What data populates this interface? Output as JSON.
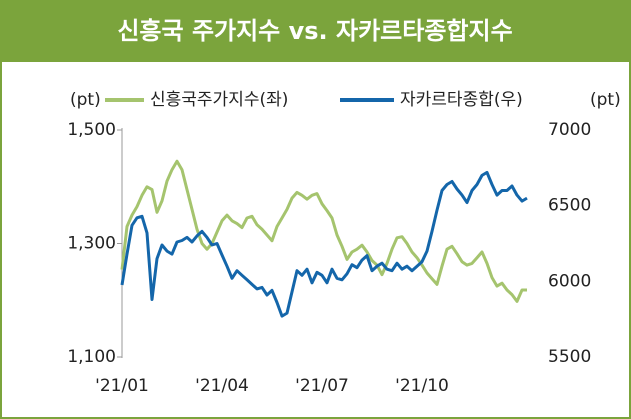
{
  "chart_data": {
    "type": "line",
    "title": "신흥국 주가지수 vs. 자카르타종합지수",
    "y_label": "(pt)",
    "y2_label": "(pt)",
    "categories": [
      "'21/01",
      null,
      null,
      null,
      null,
      null,
      null,
      null,
      null,
      null,
      null,
      null,
      null,
      null,
      null,
      null,
      null,
      null,
      null,
      null,
      "'21/04",
      null,
      null,
      null,
      null,
      null,
      null,
      null,
      null,
      null,
      null,
      null,
      null,
      null,
      null,
      null,
      null,
      null,
      null,
      null,
      "'21/07",
      null,
      null,
      null,
      null,
      null,
      null,
      null,
      null,
      null,
      null,
      null,
      null,
      null,
      null,
      null,
      null,
      null,
      null,
      null,
      "'21/10",
      null,
      null,
      null,
      null,
      null,
      null,
      null,
      null,
      null,
      null,
      null,
      null,
      null,
      null,
      null,
      null,
      null,
      null,
      null,
      null,
      null
    ],
    "series": [
      {
        "name": "신흥국주가지수(좌)",
        "color": "#a5c46e",
        "axis": "y",
        "values": [
          1254,
          1330,
          1350,
          1365,
          1385,
          1400,
          1395,
          1355,
          1375,
          1410,
          1430,
          1445,
          1430,
          1395,
          1360,
          1325,
          1300,
          1290,
          1300,
          1320,
          1340,
          1350,
          1340,
          1335,
          1328,
          1345,
          1348,
          1333,
          1325,
          1315,
          1305,
          1330,
          1345,
          1360,
          1380,
          1390,
          1385,
          1378,
          1385,
          1388,
          1370,
          1358,
          1345,
          1315,
          1295,
          1272,
          1285,
          1290,
          1297,
          1285,
          1270,
          1262,
          1245,
          1265,
          1290,
          1310,
          1312,
          1300,
          1285,
          1275,
          1262,
          1248,
          1238,
          1228,
          1260,
          1290,
          1295,
          1282,
          1268,
          1262,
          1265,
          1275,
          1285,
          1265,
          1240,
          1225,
          1230,
          1218,
          1210,
          1198,
          1218,
          1218
        ]
      },
      {
        "name": "자카르타종합(우)",
        "color": "#1466aa",
        "axis": "y2",
        "values": [
          5976,
          6180,
          6370,
          6420,
          6430,
          6320,
          5880,
          6150,
          6240,
          6200,
          6180,
          6260,
          6270,
          6290,
          6260,
          6300,
          6330,
          6290,
          6240,
          6250,
          6174,
          6100,
          6020,
          6070,
          6040,
          6010,
          5980,
          5950,
          5960,
          5910,
          5940,
          5860,
          5770,
          5790,
          5930,
          6070,
          6040,
          6080,
          5990,
          6060,
          6040,
          5990,
          6080,
          6020,
          6010,
          6050,
          6110,
          6090,
          6140,
          6170,
          6070,
          6100,
          6120,
          6080,
          6070,
          6120,
          6080,
          6100,
          6070,
          6100,
          6130,
          6200,
          6330,
          6470,
          6600,
          6640,
          6660,
          6610,
          6570,
          6520,
          6600,
          6640,
          6700,
          6720,
          6640,
          6570,
          6600,
          6600,
          6630,
          6570,
          6530,
          6550
        ]
      }
    ],
    "ylim": [
      1100,
      1500
    ],
    "yticks": [
      {
        "value": 1100,
        "label": "1,100"
      },
      {
        "value": 1300,
        "label": "1,300"
      },
      {
        "value": 1500,
        "label": "1,500"
      }
    ],
    "y2lim": [
      5500,
      7000
    ],
    "y2ticks": [
      5500,
      6000,
      6500,
      7000
    ]
  }
}
